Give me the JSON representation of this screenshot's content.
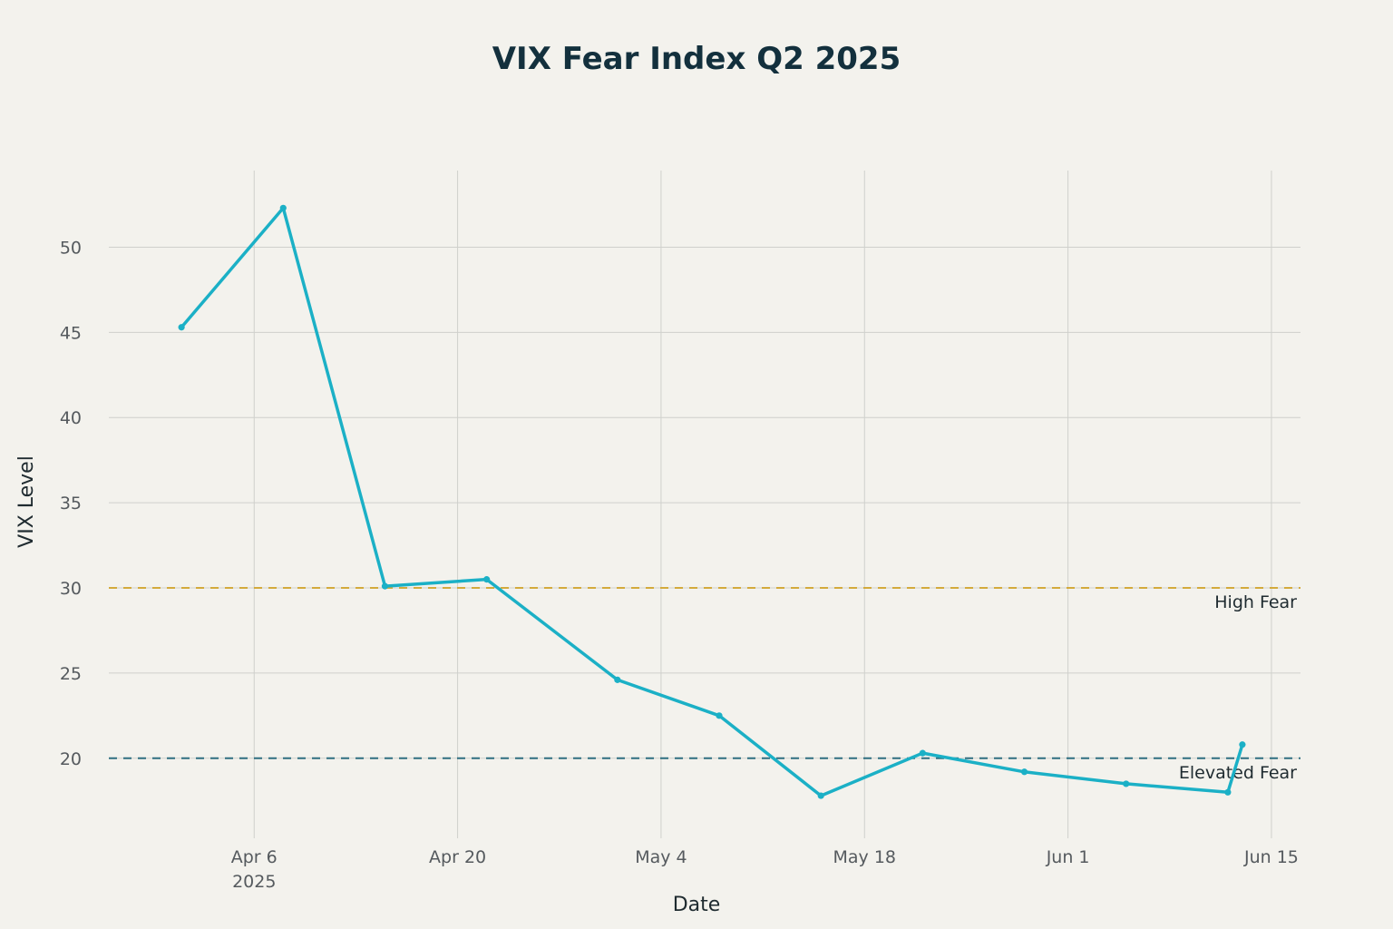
{
  "chart_data": {
    "type": "line",
    "title": "VIX Fear Index Q2 2025",
    "xlabel": "Date",
    "ylabel": "VIX Level",
    "x_tick_labels": [
      {
        "date": "2025-04-06",
        "label": "Apr 6",
        "sublabel": "2025"
      },
      {
        "date": "2025-04-20",
        "label": "Apr 20",
        "sublabel": ""
      },
      {
        "date": "2025-05-04",
        "label": "May 4",
        "sublabel": ""
      },
      {
        "date": "2025-05-18",
        "label": "May 18",
        "sublabel": ""
      },
      {
        "date": "2025-06-01",
        "label": "Jun 1",
        "sublabel": ""
      },
      {
        "date": "2025-06-15",
        "label": "Jun 15",
        "sublabel": ""
      }
    ],
    "y_ticks": [
      20,
      25,
      30,
      35,
      40,
      45,
      50
    ],
    "xlim": [
      "2025-03-27",
      "2025-06-17"
    ],
    "ylim": [
      15.3,
      54.5
    ],
    "grid": true,
    "series": [
      {
        "color": "#1bb0c6",
        "points": [
          {
            "x": "2025-04-01",
            "y": 45.3
          },
          {
            "x": "2025-04-08",
            "y": 52.3
          },
          {
            "x": "2025-04-15",
            "y": 30.1
          },
          {
            "x": "2025-04-22",
            "y": 30.5
          },
          {
            "x": "2025-05-01",
            "y": 24.6
          },
          {
            "x": "2025-05-08",
            "y": 22.5
          },
          {
            "x": "2025-05-15",
            "y": 17.8
          },
          {
            "x": "2025-05-22",
            "y": 20.3
          },
          {
            "x": "2025-05-29",
            "y": 19.2
          },
          {
            "x": "2025-06-05",
            "y": 18.5
          },
          {
            "x": "2025-06-12",
            "y": 18.0
          },
          {
            "x": "2025-06-13",
            "y": 20.8
          }
        ]
      }
    ],
    "reference_lines": [
      {
        "y": 30,
        "label": "High Fear",
        "color": "#d4aa3c"
      },
      {
        "y": 20,
        "label": "Elevated Fear",
        "color": "#2e6e80"
      }
    ]
  }
}
